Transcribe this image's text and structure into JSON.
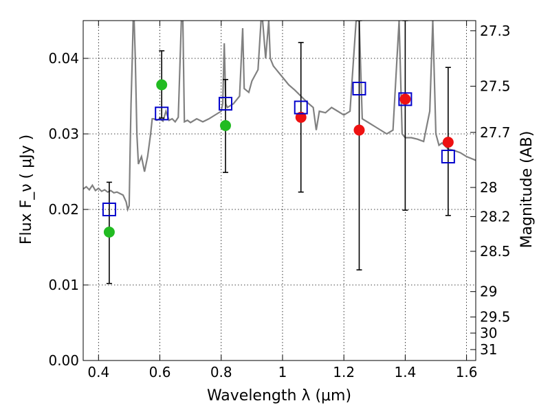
{
  "chart_data": {
    "type": "scatter",
    "title": "",
    "xlabel": "Wavelength  λ (μm)",
    "ylabel": "Flux  F_ν  ( μJy )",
    "y2label": "Magnitude (AB)",
    "xlim": [
      0.35,
      1.63
    ],
    "ylim": [
      0.0,
      0.045
    ],
    "grid": true,
    "x_ticks": [
      {
        "value": 0.4,
        "label": "0.4"
      },
      {
        "value": 0.6,
        "label": "0.6"
      },
      {
        "value": 0.8,
        "label": "0.8"
      },
      {
        "value": 1.0,
        "label": "1"
      },
      {
        "value": 1.2,
        "label": "1.2"
      },
      {
        "value": 1.4,
        "label": "1.4"
      },
      {
        "value": 1.6,
        "label": "1.6"
      }
    ],
    "y_ticks": [
      {
        "value": 0.0,
        "label": "0.00"
      },
      {
        "value": 0.01,
        "label": "0.01"
      },
      {
        "value": 0.02,
        "label": "0.02"
      },
      {
        "value": 0.03,
        "label": "0.03"
      },
      {
        "value": 0.04,
        "label": "0.04"
      }
    ],
    "y2_ticks": [
      {
        "mag": 27.3,
        "label": "27.3"
      },
      {
        "mag": 27.5,
        "label": "27.5"
      },
      {
        "mag": 27.7,
        "label": "27.7"
      },
      {
        "mag": 28.0,
        "label": "28"
      },
      {
        "mag": 28.2,
        "label": "28.2"
      },
      {
        "mag": 28.5,
        "label": "28.5"
      },
      {
        "mag": 29.0,
        "label": "29"
      },
      {
        "mag": 29.5,
        "label": "29.5"
      },
      {
        "mag": 30.0,
        "label": "30"
      },
      {
        "mag": 31.0,
        "label": "31"
      }
    ],
    "model_color": "#808080",
    "model_spectrum": [
      [
        0.35,
        0.0227
      ],
      [
        0.36,
        0.023
      ],
      [
        0.37,
        0.0226
      ],
      [
        0.38,
        0.0232
      ],
      [
        0.39,
        0.0225
      ],
      [
        0.4,
        0.0228
      ],
      [
        0.41,
        0.0224
      ],
      [
        0.42,
        0.0226
      ],
      [
        0.43,
        0.0223
      ],
      [
        0.44,
        0.0225
      ],
      [
        0.45,
        0.0222
      ],
      [
        0.46,
        0.0223
      ],
      [
        0.47,
        0.0221
      ],
      [
        0.48,
        0.0219
      ],
      [
        0.49,
        0.021
      ],
      [
        0.495,
        0.02
      ],
      [
        0.5,
        0.0205
      ],
      [
        0.503,
        0.028
      ],
      [
        0.506,
        0.034
      ],
      [
        0.51,
        0.04
      ],
      [
        0.513,
        0.045
      ],
      [
        0.516,
        0.045
      ],
      [
        0.52,
        0.04
      ],
      [
        0.525,
        0.03
      ],
      [
        0.53,
        0.026
      ],
      [
        0.54,
        0.027
      ],
      [
        0.55,
        0.025
      ],
      [
        0.56,
        0.027
      ],
      [
        0.57,
        0.03
      ],
      [
        0.575,
        0.032
      ],
      [
        0.58,
        0.032
      ],
      [
        0.59,
        0.0318
      ],
      [
        0.6,
        0.032
      ],
      [
        0.61,
        0.0317
      ],
      [
        0.62,
        0.033
      ],
      [
        0.63,
        0.0318
      ],
      [
        0.64,
        0.032
      ],
      [
        0.65,
        0.0316
      ],
      [
        0.66,
        0.0322
      ],
      [
        0.67,
        0.045
      ],
      [
        0.675,
        0.045
      ],
      [
        0.68,
        0.0316
      ],
      [
        0.69,
        0.0318
      ],
      [
        0.7,
        0.0315
      ],
      [
        0.72,
        0.032
      ],
      [
        0.74,
        0.0316
      ],
      [
        0.76,
        0.032
      ],
      [
        0.78,
        0.0325
      ],
      [
        0.8,
        0.033
      ],
      [
        0.805,
        0.034
      ],
      [
        0.81,
        0.042
      ],
      [
        0.815,
        0.034
      ],
      [
        0.82,
        0.0335
      ],
      [
        0.84,
        0.034
      ],
      [
        0.86,
        0.035
      ],
      [
        0.87,
        0.044
      ],
      [
        0.875,
        0.036
      ],
      [
        0.89,
        0.0355
      ],
      [
        0.9,
        0.037
      ],
      [
        0.92,
        0.0385
      ],
      [
        0.93,
        0.045
      ],
      [
        0.935,
        0.045
      ],
      [
        0.945,
        0.04
      ],
      [
        0.955,
        0.045
      ],
      [
        0.96,
        0.04
      ],
      [
        0.97,
        0.039
      ],
      [
        0.98,
        0.0385
      ],
      [
        0.99,
        0.038
      ],
      [
        1.0,
        0.0375
      ],
      [
        1.02,
        0.0365
      ],
      [
        1.04,
        0.0358
      ],
      [
        1.06,
        0.035
      ],
      [
        1.08,
        0.0342
      ],
      [
        1.1,
        0.0335
      ],
      [
        1.11,
        0.0305
      ],
      [
        1.12,
        0.033
      ],
      [
        1.14,
        0.0328
      ],
      [
        1.16,
        0.0335
      ],
      [
        1.18,
        0.033
      ],
      [
        1.2,
        0.0325
      ],
      [
        1.22,
        0.033
      ],
      [
        1.24,
        0.045
      ],
      [
        1.25,
        0.045
      ],
      [
        1.26,
        0.032
      ],
      [
        1.28,
        0.0315
      ],
      [
        1.3,
        0.031
      ],
      [
        1.32,
        0.0305
      ],
      [
        1.34,
        0.03
      ],
      [
        1.36,
        0.0305
      ],
      [
        1.38,
        0.045
      ],
      [
        1.39,
        0.03
      ],
      [
        1.4,
        0.0295
      ],
      [
        1.42,
        0.0295
      ],
      [
        1.44,
        0.0293
      ],
      [
        1.46,
        0.029
      ],
      [
        1.48,
        0.033
      ],
      [
        1.49,
        0.045
      ],
      [
        1.5,
        0.03
      ],
      [
        1.51,
        0.0285
      ],
      [
        1.52,
        0.0288
      ],
      [
        1.54,
        0.028
      ],
      [
        1.56,
        0.0278
      ],
      [
        1.58,
        0.0275
      ],
      [
        1.6,
        0.027
      ],
      [
        1.63,
        0.0265
      ]
    ],
    "model_photometry": {
      "marker": "open-square",
      "color": "#0000cc",
      "points": [
        {
          "x": 0.435,
          "y": 0.02
        },
        {
          "x": 0.606,
          "y": 0.0327
        },
        {
          "x": 0.814,
          "y": 0.034
        },
        {
          "x": 1.06,
          "y": 0.0335
        },
        {
          "x": 1.25,
          "y": 0.036
        },
        {
          "x": 1.4,
          "y": 0.0346
        },
        {
          "x": 1.54,
          "y": 0.027
        }
      ]
    },
    "observed": [
      {
        "x": 0.435,
        "y": 0.017,
        "ylow": 0.0102,
        "yhigh": 0.0236,
        "color": "#22bb22"
      },
      {
        "x": 0.606,
        "y": 0.0365,
        "ylow": 0.0321,
        "yhigh": 0.041,
        "color": "#22bb22"
      },
      {
        "x": 0.814,
        "y": 0.0311,
        "ylow": 0.0249,
        "yhigh": 0.0372,
        "color": "#22bb22"
      },
      {
        "x": 1.06,
        "y": 0.0322,
        "ylow": 0.0223,
        "yhigh": 0.0421,
        "color": "#ee1111"
      },
      {
        "x": 1.25,
        "y": 0.0305,
        "ylow": 0.012,
        "yhigh": 0.045,
        "color": "#ee1111"
      },
      {
        "x": 1.4,
        "y": 0.0346,
        "ylow": 0.0199,
        "yhigh": 0.045,
        "color": "#ee1111"
      },
      {
        "x": 1.54,
        "y": 0.0289,
        "ylow": 0.0192,
        "yhigh": 0.0388,
        "color": "#ee1111"
      }
    ],
    "errorbar_color": "#000000"
  }
}
